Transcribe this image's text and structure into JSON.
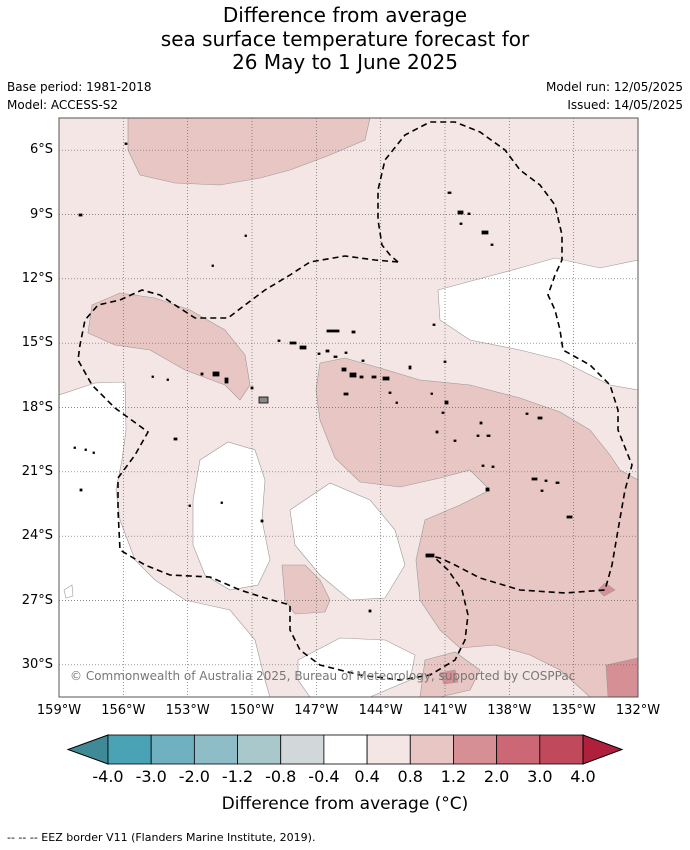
{
  "title": {
    "line1": "Difference from average",
    "line2": "sea surface temperature forecast for",
    "line3": "26 May to 1 June 2025"
  },
  "meta": {
    "base_period": "Base period: 1981-2018",
    "model": "Model: ACCESS-S2",
    "model_run": "Model run: 12/05/2025",
    "issued": "Issued: 14/05/2025"
  },
  "map": {
    "lon_range": [
      -159,
      -132
    ],
    "lat_range": [
      -31.5,
      -4.5
    ],
    "lat_ticks": [
      "6°S",
      "9°S",
      "12°S",
      "15°S",
      "18°S",
      "21°S",
      "24°S",
      "27°S",
      "30°S"
    ],
    "lat_values": [
      -6,
      -9,
      -12,
      -15,
      -18,
      -21,
      -24,
      -27,
      -30
    ],
    "lon_ticks": [
      "159°W",
      "156°W",
      "153°W",
      "150°W",
      "147°W",
      "144°W",
      "141°W",
      "138°W",
      "135°W",
      "132°W"
    ],
    "lon_values": [
      -159,
      -156,
      -153,
      -150,
      -147,
      -144,
      -141,
      -138,
      -135,
      -132
    ],
    "grid": true,
    "copyright": "© Commonwealth of Australia 2025, Bureau of Meteorology, supported by COSPPac"
  },
  "colorbar": {
    "title": "Difference from average (°C)",
    "tick_labels": [
      "-4.0",
      "-3.0",
      "-2.0",
      "-1.2",
      "-0.8",
      "-0.4",
      "0.4",
      "0.8",
      "1.2",
      "2.0",
      "3.0",
      "4.0"
    ],
    "colors": [
      "#3f8a96",
      "#4aa3b5",
      "#6fb1c0",
      "#8fbdc7",
      "#a9c8cc",
      "#d2d8d9",
      "#ffffff",
      "#f4e6e4",
      "#e8c6c3",
      "#d68f95",
      "#cc6875",
      "#c04a5c",
      "#b0203c"
    ]
  },
  "footnote": "-- -- -- EEZ border V11 (Flanders Marine Institute, 2019)."
}
